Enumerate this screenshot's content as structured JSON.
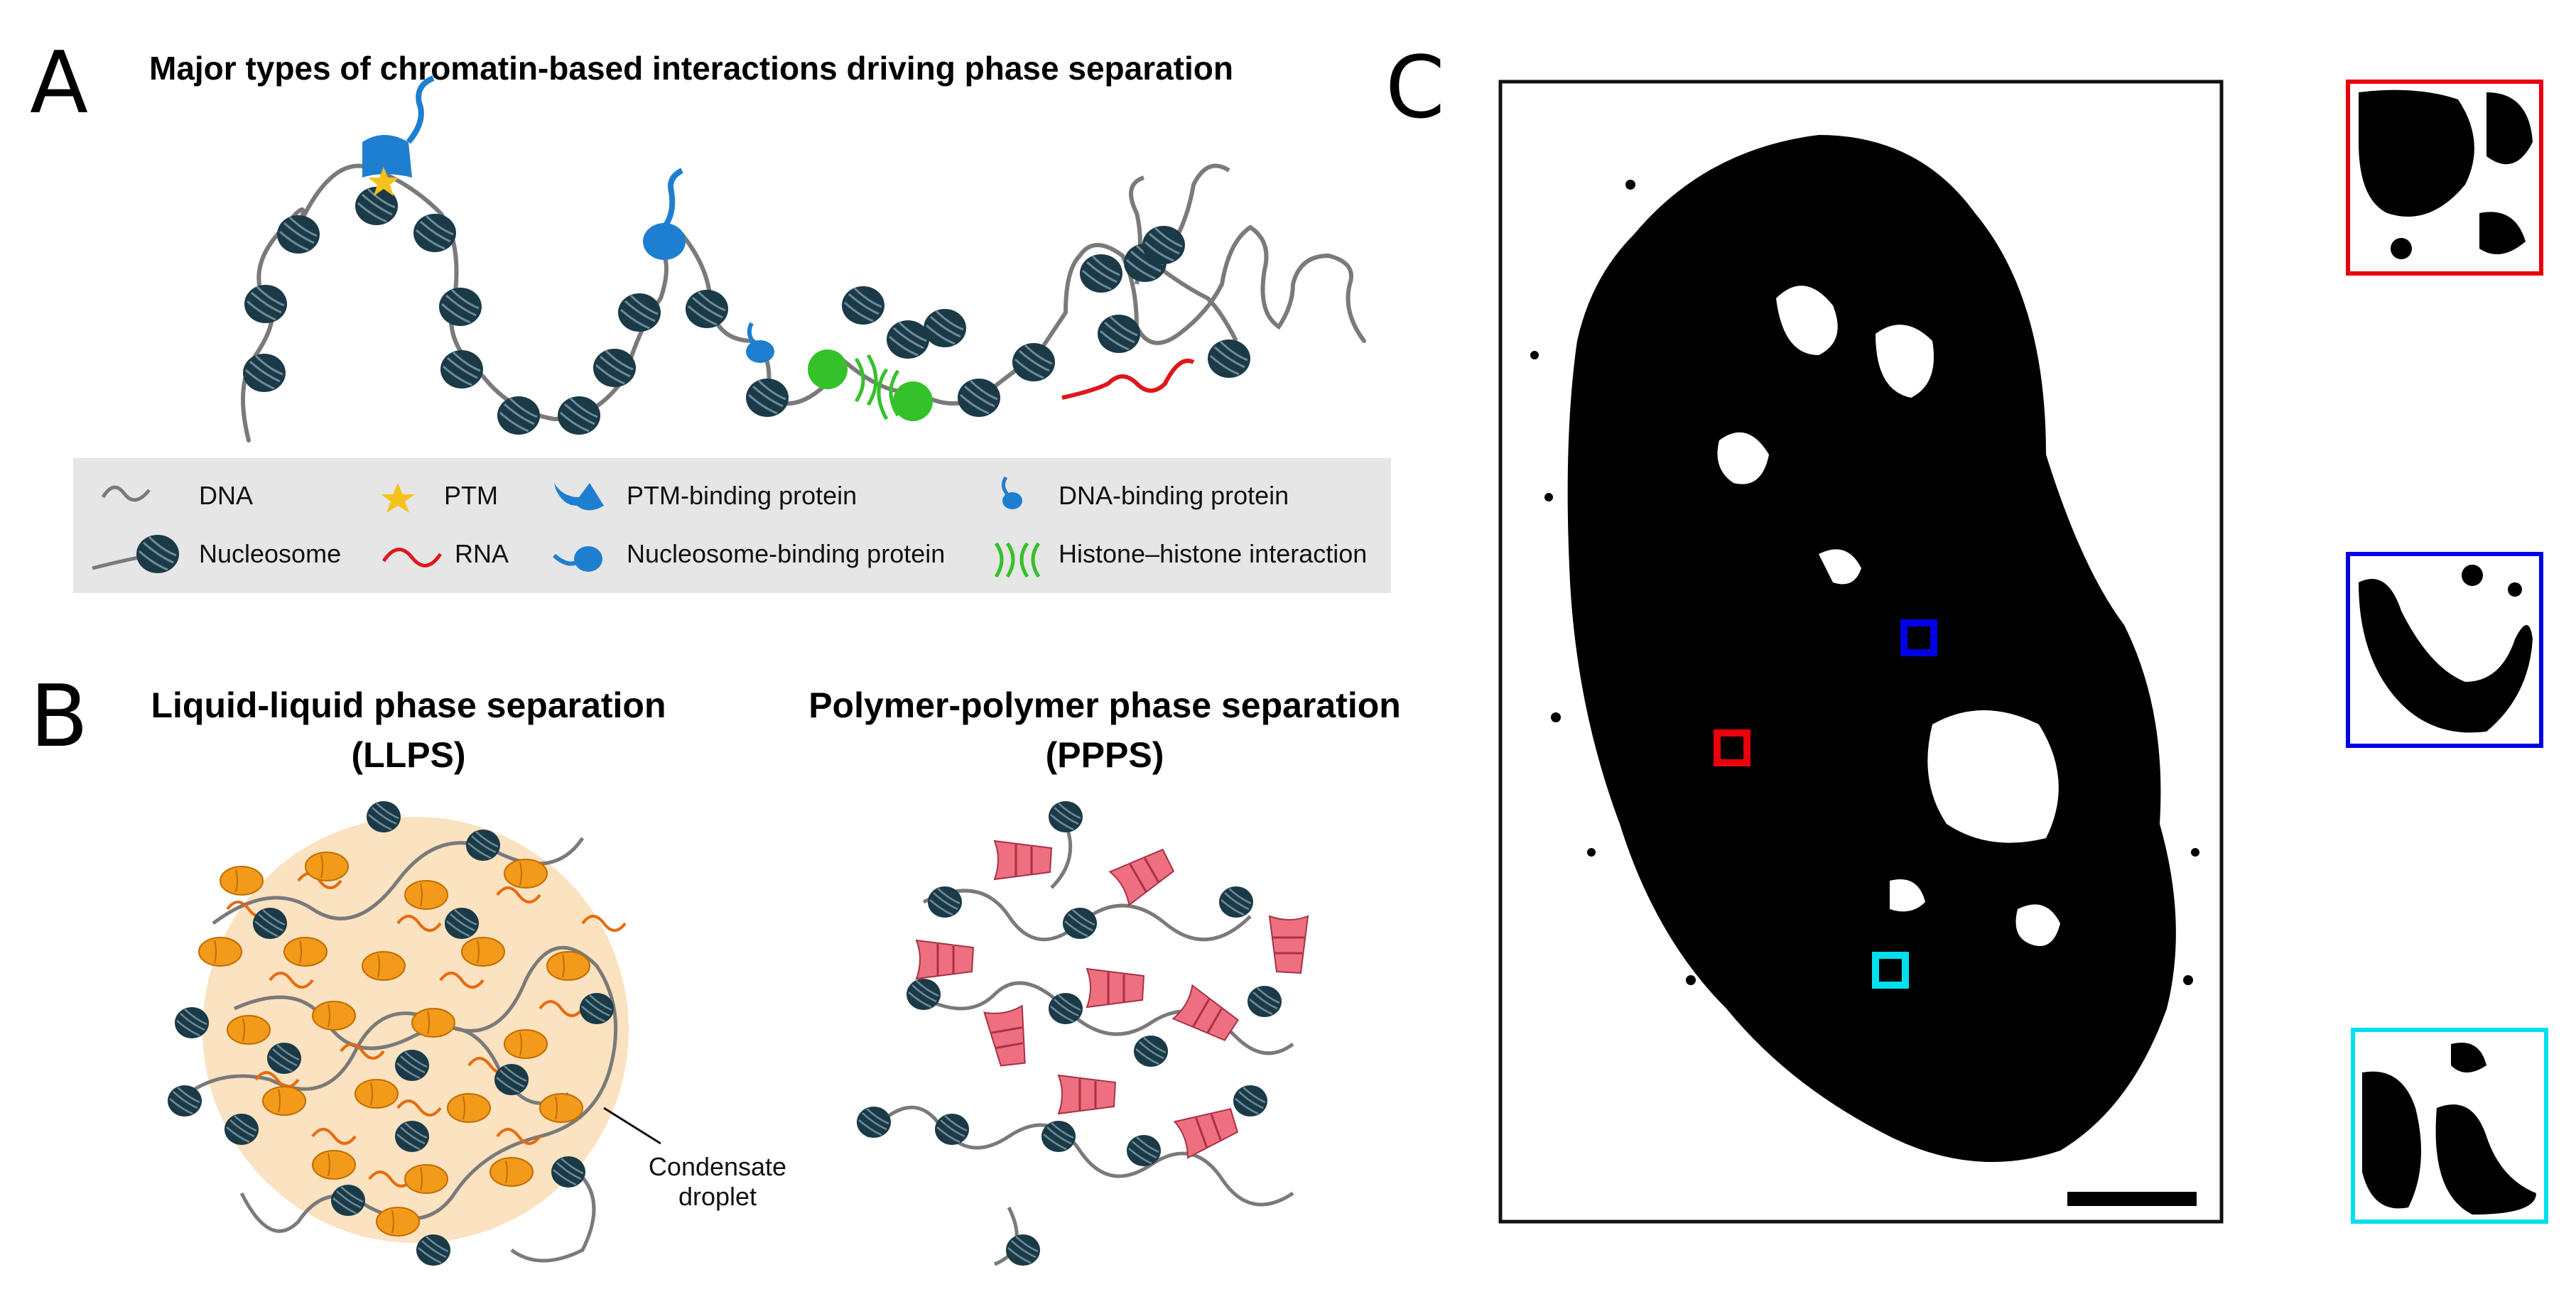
{
  "panels": {
    "a": {
      "letter": "A",
      "title": "Major types of chromatin-based interactions driving phase separation",
      "legend": [
        {
          "label": "DNA",
          "icon": "dna-icon"
        },
        {
          "label": "PTM",
          "icon": "star-icon"
        },
        {
          "label": "PTM-binding protein",
          "icon": "ptm-binding-protein-icon"
        },
        {
          "label": "DNA-binding protein",
          "icon": "dna-binding-protein-icon"
        },
        {
          "label": "Nucleosome",
          "icon": "nucleosome-icon"
        },
        {
          "label": "RNA",
          "icon": "rna-icon"
        },
        {
          "label": "Nucleosome-binding protein",
          "icon": "nucleosome-binding-protein-icon"
        },
        {
          "label": "Histone–histone interaction",
          "icon": "histone-interaction-icon"
        }
      ]
    },
    "b": {
      "letter": "B",
      "left_title_line1": "Liquid-liquid phase separation",
      "left_title_line2": "(LLPS)",
      "right_title_line1": "Polymer-polymer phase separation",
      "right_title_line2": "(PPPS)",
      "annotation_line1": "Condensate",
      "annotation_line2": "droplet"
    },
    "c": {
      "letter": "C",
      "roi_colors": [
        "#e8000b",
        "#0000e6",
        "#00e0ee"
      ]
    }
  },
  "colors": {
    "nucleosome": "#1b3a48",
    "dna": "#7a7a7a",
    "ptm_protein": "#1e7fd0",
    "rna": "#e0161c",
    "histone_interaction": "#35c12a",
    "droplet": "#fbe2c0",
    "llps_protein": "#f39a1a",
    "ppps_protein": "#ee6f80",
    "legend_bg": "#e6e6e6"
  }
}
